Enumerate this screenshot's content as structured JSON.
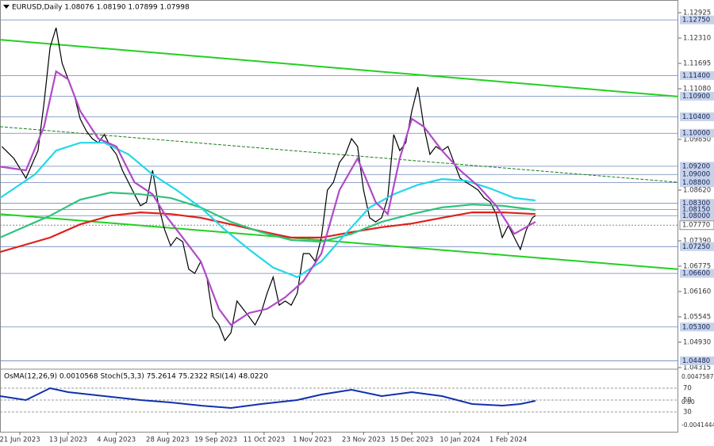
{
  "chart_data": {
    "type": "line",
    "title": "EURUSD,Daily 1.08076 1.08190 1.07899 1.07998",
    "xlim": [
      -6.6,
      218.4
    ],
    "xticks": [
      {
        "value": 0,
        "label": "21 Jun 2023"
      },
      {
        "value": 16,
        "label": "13 Jul 2023"
      },
      {
        "value": 32,
        "label": "4 Aug 2023"
      },
      {
        "value": 49,
        "label": "28 Aug 2023"
      },
      {
        "value": 65,
        "label": "19 Sep 2023"
      },
      {
        "value": 81,
        "label": "11 Oct 2023"
      },
      {
        "value": 97,
        "label": "1 Nov 2023"
      },
      {
        "value": 114,
        "label": "23 Nov 2023"
      },
      {
        "value": 130,
        "label": "15 Dec 2023"
      },
      {
        "value": 146,
        "label": "10 Jan 2024"
      },
      {
        "value": 162,
        "label": "1 Feb 2024"
      }
    ],
    "ylim": [
      1.04296,
      1.13233
    ],
    "yticks": [
      1.12925,
      {
        "value": 1.1231,
        "label": "1.12310"
      },
      1.11695,
      {
        "value": 1.1108,
        "label": "1.11080"
      },
      {
        "value": 1.0985,
        "label": "1.09850"
      },
      {
        "value": 1.0862,
        "label": "1.08620"
      },
      {
        "value": 1.0739,
        "label": "1.07390"
      },
      1.06775,
      {
        "value": 1.0616,
        "label": "1.06160"
      },
      1.05545,
      {
        "value": 1.0493,
        "label": "1.04930"
      },
      1.04315
    ],
    "levels": [
      {
        "value": 1.1275,
        "label": "1.12750"
      },
      {
        "value": 1.114,
        "label": "1.11400"
      },
      {
        "value": 1.109,
        "label": "1.10900"
      },
      {
        "value": 1.104,
        "label": "1.10400"
      },
      {
        "value": 1.1,
        "label": "1.10000"
      },
      {
        "value": 1.092,
        "label": "1.09200"
      },
      {
        "value": 1.09,
        "label": "1.09000"
      },
      {
        "value": 1.088,
        "label": "1.08800"
      },
      {
        "value": 1.083,
        "label": "1.08300"
      },
      {
        "value": 1.0815,
        "label": "1.08150"
      },
      {
        "value": 1.08,
        "label": "1.08000"
      },
      {
        "value": 1.0725,
        "label": "1.07250"
      },
      {
        "value": 1.066,
        "label": "1.06600"
      },
      {
        "value": 1.053,
        "label": "1.05300"
      },
      {
        "value": 1.0448,
        "label": "1.04480"
      }
    ],
    "level_color": "#6a86b8",
    "current_line": {
      "value": 1.0777,
      "label": "1.07770"
    },
    "series": [
      {
        "color": "#000000",
        "x": [
          -6,
          -2,
          2,
          6,
          8,
          10,
          12,
          14,
          16,
          18,
          20,
          22,
          24,
          26,
          28,
          30,
          32,
          34,
          36,
          38,
          40,
          42,
          44,
          46,
          48,
          50,
          52,
          54,
          56,
          58,
          60,
          62,
          64,
          66,
          68,
          70,
          72,
          74,
          76,
          78,
          80,
          82,
          84,
          86,
          88,
          90,
          92,
          94,
          96,
          98,
          100,
          102,
          104,
          106,
          108,
          110,
          112,
          114,
          116,
          118,
          120,
          122,
          124,
          126,
          128,
          130,
          132,
          134,
          136,
          138,
          140,
          142,
          144,
          146,
          148,
          150,
          152,
          154,
          156,
          158,
          160,
          162,
          164,
          166,
          168,
          170,
          171
        ],
        "values": [
          1.0968,
          1.0939,
          1.0891,
          1.0958,
          1.1073,
          1.1208,
          1.1256,
          1.117,
          1.1131,
          1.1093,
          1.1035,
          1.1006,
          1.0987,
          1.0977,
          1.0997,
          1.0968,
          1.0949,
          1.091,
          1.0881,
          1.0852,
          1.0824,
          1.0833,
          1.091,
          1.0824,
          1.0766,
          1.0727,
          1.0747,
          1.0737,
          1.067,
          1.066,
          1.0689,
          1.0651,
          1.0555,
          1.0535,
          1.0497,
          1.0516,
          1.0593,
          1.0574,
          1.0555,
          1.0535,
          1.0564,
          1.0612,
          1.0651,
          1.0583,
          1.0593,
          1.0583,
          1.0612,
          1.0708,
          1.0708,
          1.0689,
          1.0747,
          1.0862,
          1.0881,
          1.0929,
          1.0949,
          1.0987,
          1.0968,
          1.0862,
          1.0795,
          1.0785,
          1.0795,
          1.0843,
          1.0997,
          1.0958,
          1.0977,
          1.1054,
          1.1112,
          1.1016,
          1.0949,
          1.0968,
          1.0958,
          1.0968,
          1.0929,
          1.0891,
          1.0881,
          1.0872,
          1.0862,
          1.0843,
          1.0833,
          1.0804,
          1.0747,
          1.0776,
          1.0747,
          1.0718,
          1.0766,
          1.0795,
          1.08
        ]
      },
      {
        "color": "#e0201a",
        "x": [
          -6.6,
          10,
          20,
          30,
          40,
          50,
          60,
          70,
          80,
          90,
          100,
          110,
          120,
          130,
          140,
          150,
          160,
          171
        ],
        "values": [
          1.0712,
          1.0747,
          1.0779,
          1.08,
          1.0808,
          1.0804,
          1.0795,
          1.0779,
          1.0762,
          1.0747,
          1.0747,
          1.076,
          1.0772,
          1.0781,
          1.0795,
          1.0808,
          1.0808,
          1.0804
        ]
      },
      {
        "color": "#2ec27e",
        "x": [
          -6.6,
          10,
          20,
          30,
          40,
          50,
          60,
          70,
          80,
          90,
          100,
          110,
          120,
          130,
          140,
          150,
          160,
          171
        ],
        "values": [
          1.0747,
          1.08,
          1.0839,
          1.0856,
          1.0852,
          1.0843,
          1.082,
          1.0785,
          1.076,
          1.0741,
          1.0737,
          1.0756,
          1.0785,
          1.0804,
          1.082,
          1.0827,
          1.0824,
          1.0814
        ]
      },
      {
        "color": "#22d8e8",
        "x": [
          -6.6,
          5,
          12,
          20,
          28,
          36,
          44,
          52,
          60,
          68,
          76,
          84,
          92,
          100,
          108,
          116,
          124,
          132,
          140,
          148,
          156,
          164,
          171
        ],
        "values": [
          1.0843,
          1.09,
          1.0958,
          1.0977,
          1.0977,
          1.0949,
          1.09,
          1.0862,
          1.082,
          1.0766,
          1.0718,
          1.0674,
          1.0651,
          1.0689,
          1.0756,
          1.082,
          1.0852,
          1.0875,
          1.0889,
          1.0885,
          1.0866,
          1.0843,
          1.0837
        ]
      },
      {
        "color": "#b04ac8",
        "x": [
          -6.6,
          2,
          8,
          12,
          16,
          20,
          26,
          32,
          38,
          44,
          48,
          54,
          60,
          66,
          70,
          76,
          82,
          88,
          94,
          100,
          106,
          112,
          118,
          122,
          126,
          130,
          134,
          140,
          146,
          152,
          158,
          164,
          171
        ],
        "values": [
          1.0919,
          1.091,
          1.1016,
          1.115,
          1.1131,
          1.1054,
          1.0987,
          1.0968,
          1.0881,
          1.0852,
          1.0804,
          1.0747,
          1.0689,
          1.0574,
          1.0535,
          1.0564,
          1.0574,
          1.0602,
          1.0641,
          1.0708,
          1.0862,
          1.0939,
          1.0833,
          1.0804,
          1.0939,
          1.1035,
          1.1016,
          1.0958,
          1.091,
          1.0872,
          1.0824,
          1.0756,
          1.0785
        ]
      }
    ],
    "trendlines": [
      {
        "color": "#22d022",
        "x": [
          -6.6,
          218.4
        ],
        "values": [
          1.1227,
          1.1089
        ]
      },
      {
        "color": "#22d022",
        "x": [
          -6.6,
          218.4
        ],
        "values": [
          1.0804,
          1.067
        ]
      },
      {
        "color": "#1a7a1a",
        "x": [
          -6.6,
          218.4
        ],
        "values": [
          1.1016,
          1.0881
        ]
      }
    ],
    "indicator": {
      "title": "OsMA(12,26,9) 0.0010568 Stoch(5,3,3) 75.2614 75.2322 RSI(14) 48.0220",
      "ylim": [
        -3.3,
        99.3
      ],
      "levels": [
        70,
        50,
        30
      ],
      "scale_labels": [
        "0.0047587",
        "0.00",
        "-0.0041444"
      ],
      "series": [
        {
          "color": "#1030b0",
          "x": [
            -6.6,
            2,
            10,
            16,
            28,
            40,
            50,
            60,
            70,
            80,
            92,
            100,
            110,
            120,
            130,
            140,
            150,
            160,
            166,
            171
          ],
          "values": [
            56.7,
            50,
            70,
            63.3,
            56.7,
            50,
            46,
            40.7,
            36.7,
            43.3,
            50,
            59.3,
            67.3,
            56.7,
            63.3,
            56.7,
            43.3,
            40.7,
            43.3,
            48.7
          ]
        }
      ]
    }
  }
}
